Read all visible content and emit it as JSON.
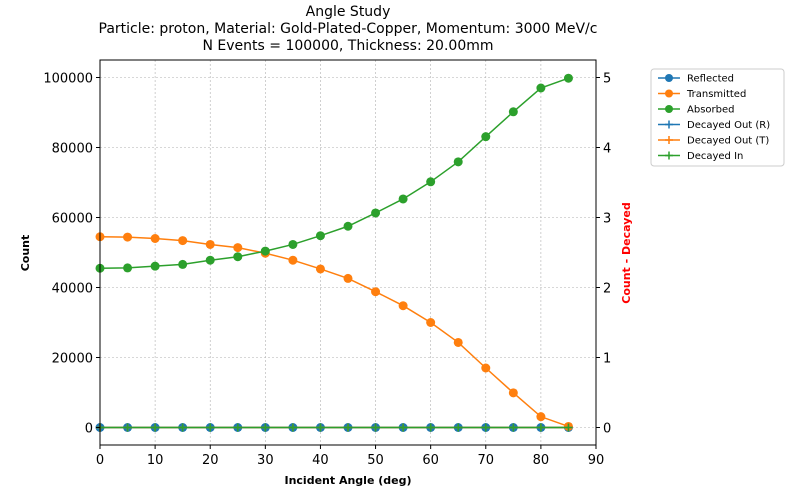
{
  "chart_data": {
    "type": "line",
    "title_lines": [
      "Angle Study",
      "Particle: proton, Material: Gold-Plated-Copper, Momentum: 3000 MeV/c",
      "N Events = 100000, Thickness: 20.00mm"
    ],
    "xlabel": "Incident Angle (deg)",
    "ylabel": "Count",
    "y2label": "Count - Decayed",
    "xlim": [
      0,
      90
    ],
    "ylim": [
      -5000,
      105000
    ],
    "y2lim": [
      -0.25,
      5.25
    ],
    "xticks": [
      0,
      10,
      20,
      30,
      40,
      50,
      60,
      70,
      80,
      90
    ],
    "yticks": [
      0,
      20000,
      40000,
      60000,
      80000,
      100000
    ],
    "y2ticks": [
      0,
      1,
      2,
      3,
      4,
      5
    ],
    "grid": true,
    "legend_position": "outside-right",
    "x": [
      0,
      5,
      10,
      15,
      20,
      25,
      30,
      35,
      40,
      45,
      50,
      55,
      60,
      65,
      70,
      75,
      80,
      85
    ],
    "series": [
      {
        "name": "Reflected",
        "axis": "left",
        "marker": "circle",
        "color": "#1f77b4",
        "values": [
          0,
          0,
          0,
          0,
          0,
          0,
          0,
          0,
          0,
          0,
          0,
          0,
          0,
          0,
          0,
          0,
          0,
          0
        ]
      },
      {
        "name": "Transmitted",
        "axis": "left",
        "marker": "circle",
        "color": "#ff7f0e",
        "values": [
          54500,
          54400,
          54000,
          53400,
          52300,
          51400,
          49800,
          47800,
          45300,
          42600,
          38800,
          34800,
          30000,
          24300,
          17000,
          9900,
          3100,
          300
        ]
      },
      {
        "name": "Absorbed",
        "axis": "left",
        "marker": "circle",
        "color": "#2ca02c",
        "values": [
          45500,
          45600,
          46100,
          46600,
          47800,
          48800,
          50400,
          52300,
          54800,
          57500,
          61300,
          65300,
          70200,
          75900,
          83100,
          90200,
          97000,
          99800
        ]
      },
      {
        "name": "Decayed Out (R)",
        "axis": "right",
        "marker": "plus",
        "color": "#1f77b4",
        "values": [
          0,
          0,
          0,
          0,
          0,
          0,
          0,
          0,
          0,
          0,
          0,
          0,
          0,
          0,
          0,
          0,
          0,
          0
        ]
      },
      {
        "name": "Decayed Out (T)",
        "axis": "right",
        "marker": "plus",
        "color": "#ff7f0e",
        "values": [
          0,
          0,
          0,
          0,
          0,
          0,
          0,
          0,
          0,
          0,
          0,
          0,
          0,
          0,
          0,
          0,
          0,
          0
        ]
      },
      {
        "name": "Decayed In",
        "axis": "right",
        "marker": "plus",
        "color": "#2ca02c",
        "values": [
          0,
          0,
          0,
          0,
          0,
          0,
          0,
          0,
          0,
          0,
          0,
          0,
          0,
          0,
          0,
          0,
          0,
          0
        ]
      }
    ],
    "y2label_color": "#ff0000"
  }
}
